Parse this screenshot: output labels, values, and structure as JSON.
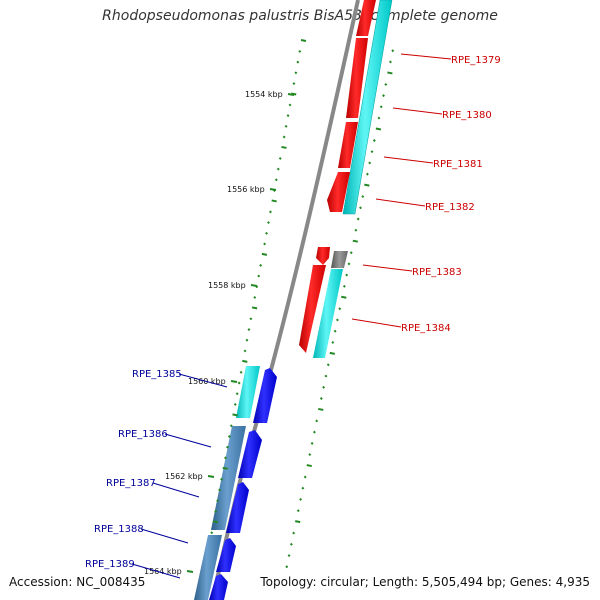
{
  "title": "Rhodopseudomonas palustris BisA53, complete genome",
  "footer": {
    "accession": "Accession: NC_008435",
    "summary": "Topology: circular; Length: 5,505,494 bp; Genes: 4,935"
  },
  "colors": {
    "forward_gene": "#ff0000",
    "forward_gene_label": "#cc0000",
    "reverse_gene": "#0000ff",
    "reverse_gene_label": "#000099",
    "rna_cyan": "#00e5e5",
    "other_grey": "#777777",
    "steel": "#4a86b8",
    "tick": "#228822",
    "backbone": "#888888"
  },
  "scale_labels": [
    "1554 kbp",
    "1556 kbp",
    "1558 kbp",
    "1560 kbp",
    "1562 kbp",
    "1564 kbp"
  ],
  "genes_forward": [
    "RPE_1379",
    "RPE_1380",
    "RPE_1381",
    "RPE_1382",
    "RPE_1383",
    "RPE_1384"
  ],
  "genes_reverse": [
    "RPE_1385",
    "RPE_1386",
    "RPE_1387",
    "RPE_1388",
    "RPE_1389"
  ]
}
